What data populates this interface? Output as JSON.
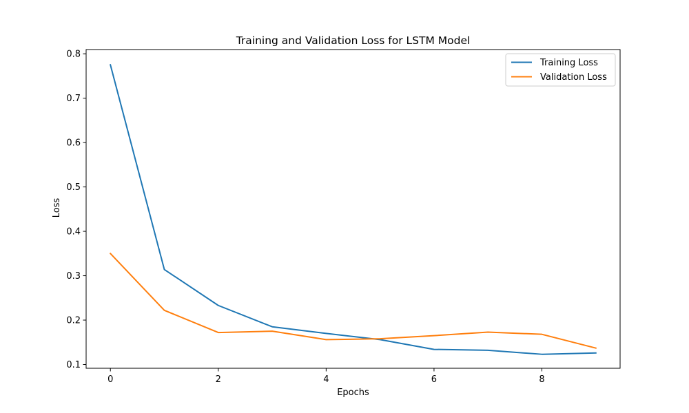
{
  "chart_data": {
    "type": "line",
    "title": "Training and Validation Loss for LSTM Model",
    "xlabel": "Epochs",
    "ylabel": "Loss",
    "x": [
      0,
      1,
      2,
      3,
      4,
      5,
      6,
      7,
      8,
      9
    ],
    "xlim": [
      -0.45,
      9.45
    ],
    "ylim": [
      0.0915,
      0.8095
    ],
    "xticks": [
      0,
      2,
      4,
      6,
      8
    ],
    "xtick_labels": [
      "0",
      "2",
      "4",
      "6",
      "8"
    ],
    "yticks": [
      0.1,
      0.2,
      0.3,
      0.4,
      0.5,
      0.6,
      0.7,
      0.8
    ],
    "ytick_labels": [
      "0.1",
      "0.2",
      "0.3",
      "0.4",
      "0.5",
      "0.6",
      "0.7",
      "0.8"
    ],
    "grid": false,
    "legend_position": "top-right",
    "series": [
      {
        "name": "Training Loss",
        "color": "#1f77b4",
        "values": [
          0.775,
          0.314,
          0.233,
          0.185,
          0.17,
          0.156,
          0.134,
          0.132,
          0.123,
          0.126
        ]
      },
      {
        "name": "Validation Loss",
        "color": "#ff7f0e",
        "values": [
          0.35,
          0.222,
          0.172,
          0.175,
          0.156,
          0.158,
          0.165,
          0.173,
          0.168,
          0.137
        ]
      }
    ]
  }
}
